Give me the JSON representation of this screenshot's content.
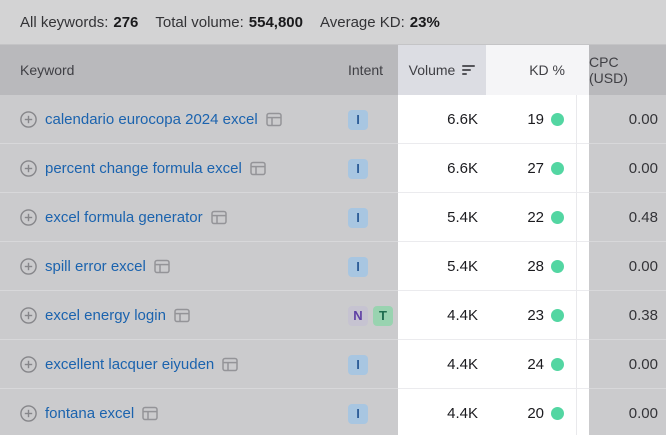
{
  "summary": {
    "all_keywords_label": "All keywords:",
    "all_keywords_value": "276",
    "total_volume_label": "Total volume:",
    "total_volume_value": "554,800",
    "average_kd_label": "Average KD:",
    "average_kd_value": "23%"
  },
  "table": {
    "columns": {
      "keyword": "Keyword",
      "intent": "Intent",
      "volume": "Volume",
      "kd": "KD %",
      "cpc": "CPC (USD)"
    },
    "sort": {
      "column": "Volume",
      "direction": "descending"
    },
    "rows": [
      {
        "keyword": "calendario eurocopa 2024 excel",
        "intents": [
          "I"
        ],
        "volume": "6.6K",
        "kd": "19",
        "cpc": "0.00"
      },
      {
        "keyword": "percent change formula excel",
        "intents": [
          "I"
        ],
        "volume": "6.6K",
        "kd": "27",
        "cpc": "0.00"
      },
      {
        "keyword": "excel formula generator",
        "intents": [
          "I"
        ],
        "volume": "5.4K",
        "kd": "22",
        "cpc": "0.48"
      },
      {
        "keyword": "spill error excel",
        "intents": [
          "I"
        ],
        "volume": "5.4K",
        "kd": "28",
        "cpc": "0.00"
      },
      {
        "keyword": "excel energy login",
        "intents": [
          "N",
          "T"
        ],
        "volume": "4.4K",
        "kd": "23",
        "cpc": "0.38"
      },
      {
        "keyword": "excellent lacquer eiyuden",
        "intents": [
          "I"
        ],
        "volume": "4.4K",
        "kd": "24",
        "cpc": "0.00"
      },
      {
        "keyword": "fontana excel",
        "intents": [
          "I"
        ],
        "volume": "4.4K",
        "kd": "20",
        "cpc": "0.00"
      }
    ]
  },
  "icons": {
    "expand": "plus-circle-icon",
    "serp": "serp-features-icon",
    "sort": "sort-descending-icon",
    "kd_dot": "difficulty-dot"
  },
  "colors": {
    "topbar_bg": "#d3d3d4",
    "topbar_border": "#c4c4c6",
    "topbar_label": "#333336",
    "topbar_value": "#1a1a1c",
    "head_bg": "#b9b9bc",
    "head_text": "#3f3f44",
    "vol_head_bg": "#dcdde3",
    "kd_head_bg": "#f5f5f7",
    "row_bg": "#cbcbcd",
    "sep_gray": "#d8d8da",
    "sep_white": "#ebebee",
    "kd_edge_line": "#e9e9ec",
    "link_blue": "#1b63ae",
    "plus_icon": "#86868a",
    "serp_icon": "#949498",
    "sort_icon": "#55555a",
    "value_text": "#1b1b1f",
    "cpc_text": "#343438",
    "dot_green": "#53d6a2",
    "intent_badges": {
      "I": {
        "bg": "#a8c6e1",
        "text": "#2f5f99"
      },
      "N": {
        "bg": "#c6c3d1",
        "text": "#5e3fa4"
      },
      "T": {
        "bg": "#99d3b0",
        "text": "#1f6e4f"
      }
    }
  }
}
